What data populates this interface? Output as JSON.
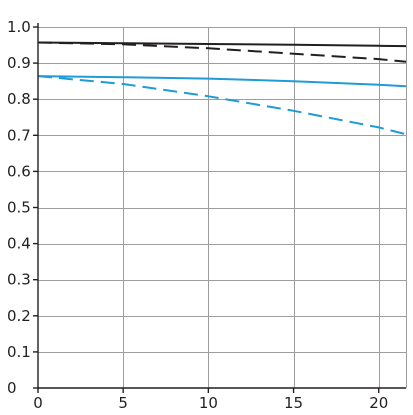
{
  "chart_data": {
    "type": "line",
    "title": "",
    "xlabel": "",
    "ylabel": "",
    "xlim": [
      0,
      21.6
    ],
    "ylim": [
      0,
      1.0
    ],
    "grid": true,
    "x_ticks": [
      "0",
      "5",
      "10",
      "15",
      "20"
    ],
    "y_ticks": [
      "0",
      "0.1",
      "0.2",
      "0.3",
      "0.4",
      "0.5",
      "0.6",
      "0.7",
      "0.8",
      "0.9",
      "1.0"
    ],
    "x_tick_values": [
      0,
      5,
      10,
      15,
      20
    ],
    "y_tick_values": [
      0,
      0.1,
      0.2,
      0.3,
      0.4,
      0.5,
      0.6,
      0.7,
      0.8,
      0.9,
      1.0
    ],
    "series": [
      {
        "color": "#231f20",
        "style": "solid",
        "x": [
          0,
          5,
          10,
          15,
          20,
          21.6
        ],
        "y": [
          0.957,
          0.955,
          0.953,
          0.951,
          0.948,
          0.947
        ]
      },
      {
        "color": "#231f20",
        "style": "dashed",
        "x": [
          0,
          5,
          10,
          15,
          20,
          21.6
        ],
        "y": [
          0.957,
          0.952,
          0.941,
          0.926,
          0.911,
          0.904
        ]
      },
      {
        "color": "#1f9bd7",
        "style": "solid",
        "x": [
          0,
          5,
          10,
          15,
          20,
          21.6
        ],
        "y": [
          0.864,
          0.861,
          0.857,
          0.85,
          0.84,
          0.836
        ]
      },
      {
        "color": "#1f9bd7",
        "style": "dashed",
        "x": [
          0,
          5,
          10,
          15,
          20,
          21.6
        ],
        "y": [
          0.864,
          0.842,
          0.808,
          0.768,
          0.722,
          0.703
        ]
      }
    ]
  }
}
